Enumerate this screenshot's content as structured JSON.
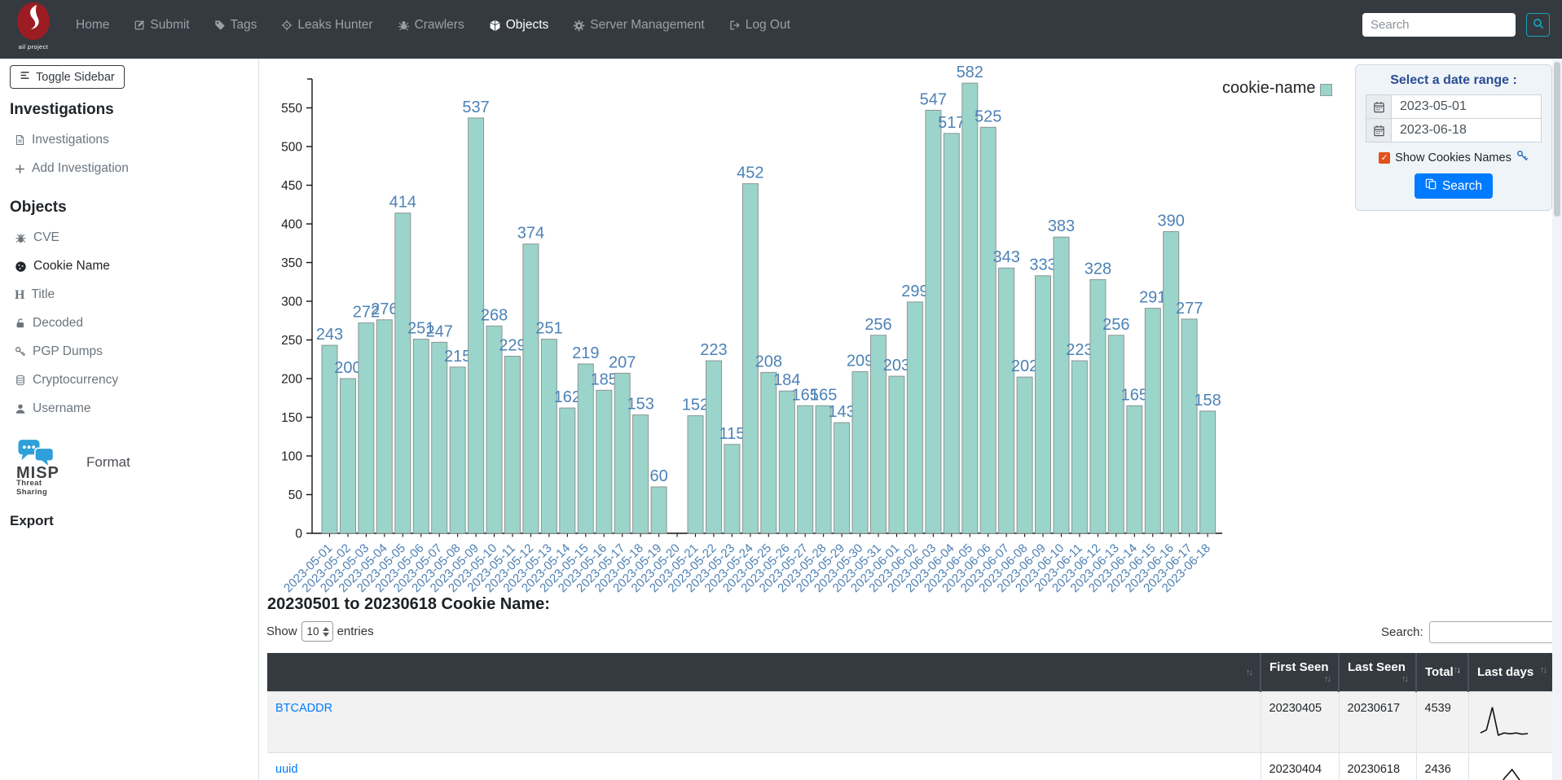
{
  "navbar": {
    "brand": "ail project",
    "items": [
      {
        "label": "Home",
        "icon": null,
        "active": false
      },
      {
        "label": "Submit",
        "icon": "edit",
        "active": false
      },
      {
        "label": "Tags",
        "icon": "tag",
        "active": false
      },
      {
        "label": "Leaks Hunter",
        "icon": "crosshair",
        "active": false
      },
      {
        "label": "Crawlers",
        "icon": "spider",
        "active": false
      },
      {
        "label": "Objects",
        "icon": "cube",
        "active": true
      },
      {
        "label": "Server Management",
        "icon": "gear",
        "active": false
      },
      {
        "label": "Log Out",
        "icon": "logout",
        "active": false
      }
    ],
    "search_placeholder": "Search"
  },
  "sidebar": {
    "toggle_label": "Toggle Sidebar",
    "investigations": {
      "heading": "Investigations",
      "items": [
        {
          "label": "Investigations",
          "icon": "file",
          "active": false
        },
        {
          "label": "Add Investigation",
          "icon": "plus",
          "active": false
        }
      ]
    },
    "objects": {
      "heading": "Objects",
      "items": [
        {
          "label": "CVE",
          "icon": "bug",
          "active": false
        },
        {
          "label": "Cookie Name",
          "icon": "cookie",
          "active": true
        },
        {
          "label": "Title",
          "icon": "titleH",
          "active": false
        },
        {
          "label": "Decoded",
          "icon": "unlock",
          "active": false
        },
        {
          "label": "PGP Dumps",
          "icon": "key",
          "active": false
        },
        {
          "label": "Cryptocurrency",
          "icon": "coins",
          "active": false
        },
        {
          "label": "Username",
          "icon": "user",
          "active": false
        }
      ]
    },
    "misp": {
      "name": "MISP",
      "subtitle": "Threat Sharing",
      "format_label": "Format"
    },
    "export_heading": "Export"
  },
  "date_panel": {
    "title": "Select a date range :",
    "start_value": "2023-05-01",
    "end_value": "2023-06-18",
    "checkbox_label": "Show Cookies Names",
    "checkbox_checked": true,
    "search_button_label": "Search"
  },
  "chart_data": {
    "type": "bar",
    "title": "",
    "xlabel": "",
    "ylabel": "",
    "ylim": [
      0,
      582
    ],
    "yticks": [
      0,
      50,
      100,
      150,
      200,
      250,
      300,
      350,
      400,
      450,
      500,
      550
    ],
    "grid": false,
    "legend_position": "top-right",
    "bar_color": "#9bd4cb",
    "bar_border": "#8a9693",
    "label_color": "#4d82b6",
    "x": [
      "2023-05-01",
      "2023-05-02",
      "2023-05-03",
      "2023-05-04",
      "2023-05-05",
      "2023-05-06",
      "2023-05-07",
      "2023-05-08",
      "2023-05-09",
      "2023-05-10",
      "2023-05-11",
      "2023-05-12",
      "2023-05-13",
      "2023-05-14",
      "2023-05-15",
      "2023-05-16",
      "2023-05-17",
      "2023-05-18",
      "2023-05-19",
      "2023-05-20",
      "2023-05-21",
      "2023-05-22",
      "2023-05-23",
      "2023-05-24",
      "2023-05-25",
      "2023-05-26",
      "2023-05-27",
      "2023-05-28",
      "2023-05-29",
      "2023-05-30",
      "2023-05-31",
      "2023-06-01",
      "2023-06-02",
      "2023-06-03",
      "2023-06-04",
      "2023-06-05",
      "2023-06-06",
      "2023-06-07",
      "2023-06-08",
      "2023-06-09",
      "2023-06-10",
      "2023-06-11",
      "2023-06-12",
      "2023-06-13",
      "2023-06-14",
      "2023-06-15",
      "2023-06-16",
      "2023-06-17",
      "2023-06-18"
    ],
    "series": [
      {
        "name": "cookie-name",
        "values": [
          243,
          200,
          272,
          276,
          414,
          251,
          247,
          215,
          537,
          268,
          229,
          374,
          251,
          162,
          219,
          185,
          207,
          153,
          60,
          0,
          152,
          223,
          115,
          452,
          208,
          184,
          165,
          165,
          143,
          209,
          256,
          203,
          299,
          547,
          517,
          582,
          525,
          343,
          202,
          333,
          383,
          223,
          328,
          256,
          165,
          291,
          390,
          277,
          158
        ]
      }
    ]
  },
  "section_heading": "20230501 to 20230618 Cookie Name:",
  "datatable": {
    "show_label": "Show",
    "page_size": "10",
    "entries_label": "entries",
    "search_label": "Search:",
    "search_value": "",
    "columns": [
      {
        "label": "",
        "sorted": null
      },
      {
        "label": "First Seen",
        "sorted": null
      },
      {
        "label": "Last Seen",
        "sorted": null
      },
      {
        "label": "Total",
        "sorted": "desc"
      },
      {
        "label": "Last days",
        "sorted": null
      }
    ],
    "rows": [
      {
        "name": "BTCADDR",
        "first_seen": "20230405",
        "last_seen": "20230617",
        "total": "4539",
        "spark": [
          0.1,
          0.2,
          0.93,
          0.03,
          0.1,
          0.07,
          0.1,
          0.06,
          0.08
        ]
      },
      {
        "name": "uuid",
        "first_seen": "20230404",
        "last_seen": "20230618",
        "total": "2436",
        "spark": [
          0.36,
          0.52,
          0.06,
          0.6,
          0.89,
          0.54,
          0.1
        ]
      }
    ]
  }
}
